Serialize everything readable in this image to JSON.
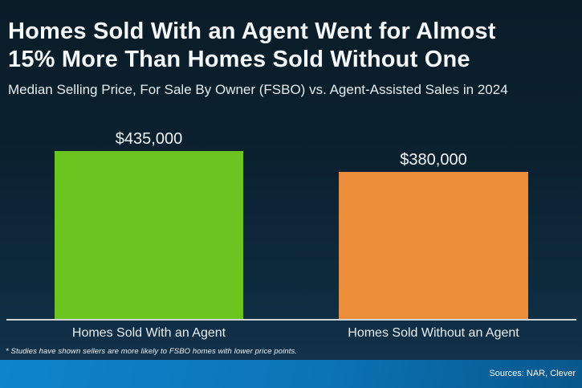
{
  "header": {
    "title_line1": "Homes Sold With an Agent Went for Almost",
    "title_line2": "15% More Than Homes Sold Without One",
    "subtitle": "Median Selling Price, For Sale By Owner (FSBO) vs. Agent-Assisted Sales in 2024"
  },
  "chart_data": {
    "type": "bar",
    "title": "Homes Sold With an Agent Went for Almost 15% More Than Homes Sold Without One",
    "subtitle": "Median Selling Price, For Sale By Owner (FSBO) vs. Agent-Assisted Sales in 2024",
    "categories": [
      "Homes Sold With an Agent",
      "Homes Sold Without an Agent"
    ],
    "values": [
      435000,
      380000
    ],
    "value_labels": [
      "$435,000",
      "$380,000"
    ],
    "colors": [
      "#6cc41f",
      "#eb8d3a"
    ],
    "ylim": [
      0,
      435000
    ],
    "grid": false,
    "legend": false,
    "baseline_axis_color": "#ccd4d8"
  },
  "footnote": "* Studies have shown sellers are more likely to FSBO homes with lower price points.",
  "footer": {
    "sources": "Sources: NAR, Clever"
  },
  "colors": {
    "background_top": "#0a1c28",
    "background_bottom": "#133450",
    "bar_agent": "#6cc41f",
    "bar_fsbo": "#eb8d3a",
    "footer_gradient_left": "#0e84cd",
    "footer_gradient_right": "#07578c",
    "axis_line": "#ccd4d8",
    "text": "#f5f7f8"
  }
}
